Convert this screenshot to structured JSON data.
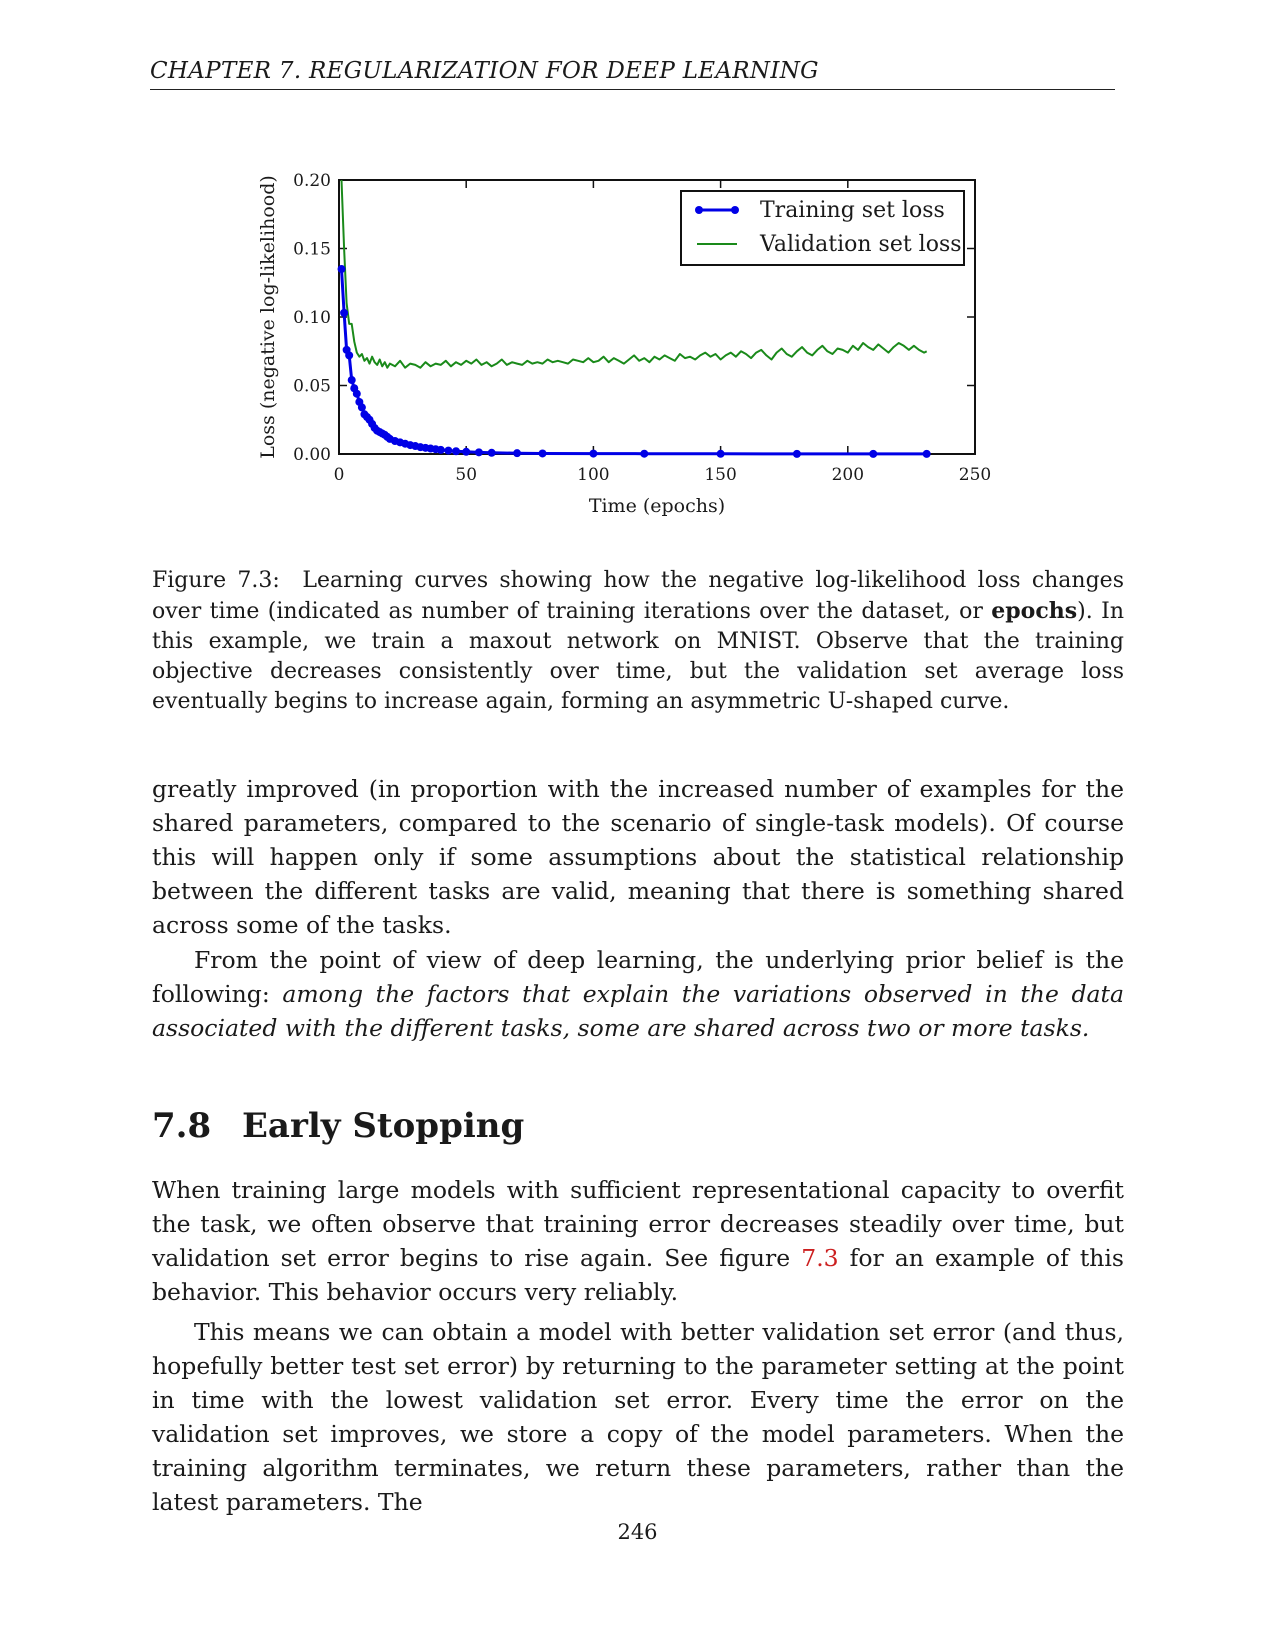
{
  "header": {
    "running_head": "CHAPTER 7.  REGULARIZATION FOR DEEP LEARNING"
  },
  "figure": {
    "caption_label": "Figure 7.3:",
    "caption_pre": "Learning curves showing how the negative log-likelihood loss changes over time (indicated as number of training iterations over the dataset, or",
    "caption_bold": "epochs",
    "caption_post": ").  In this example, we train a maxout network on MNIST. Observe that the training objective decreases consistently over time, but the validation set average loss eventually begins to increase again, forming an asymmetric U-shaped curve."
  },
  "chart_data": {
    "type": "line",
    "title": "",
    "xlabel": "Time (epochs)",
    "ylabel": "Loss (negative log-likelihood)",
    "xlim": [
      0,
      250
    ],
    "ylim": [
      0.0,
      0.2
    ],
    "xticks": [
      "0",
      "50",
      "100",
      "150",
      "200",
      "250"
    ],
    "yticks": [
      "0.00",
      "0.05",
      "0.10",
      "0.15",
      "0.20"
    ],
    "grid": false,
    "legend_position": "top-right",
    "series": [
      {
        "name": "Training set loss",
        "color": "#0000e6",
        "marker": "circle",
        "x": [
          1,
          2,
          3,
          4,
          5,
          6,
          7,
          8,
          9,
          10,
          11,
          12,
          13,
          14,
          15,
          16,
          17,
          18,
          19,
          20,
          22,
          24,
          26,
          28,
          30,
          32,
          34,
          36,
          38,
          40,
          43,
          46,
          50,
          55,
          60,
          70,
          80,
          100,
          120,
          150,
          180,
          210,
          231
        ],
        "y": [
          0.135,
          0.103,
          0.076,
          0.072,
          0.054,
          0.048,
          0.044,
          0.038,
          0.034,
          0.029,
          0.027,
          0.025,
          0.022,
          0.019,
          0.017,
          0.016,
          0.015,
          0.014,
          0.0125,
          0.011,
          0.0095,
          0.0085,
          0.0075,
          0.0065,
          0.0058,
          0.005,
          0.0045,
          0.004,
          0.0035,
          0.003,
          0.0025,
          0.002,
          0.0016,
          0.0012,
          0.0009,
          0.0006,
          0.0004,
          0.0003,
          0.0002,
          0.00015,
          0.0001,
          0.0001,
          0.0001
        ]
      },
      {
        "name": "Validation set loss",
        "color": "#1a8a1a",
        "marker": "none",
        "x": [
          1,
          2,
          3,
          4,
          5,
          6,
          7,
          8,
          9,
          10,
          11,
          12,
          13,
          14,
          15,
          16,
          17,
          18,
          19,
          20,
          22,
          24,
          26,
          28,
          30,
          32,
          34,
          36,
          38,
          40,
          42,
          44,
          46,
          48,
          50,
          52,
          54,
          56,
          58,
          60,
          62,
          64,
          66,
          68,
          70,
          72,
          74,
          76,
          78,
          80,
          82,
          84,
          86,
          88,
          90,
          92,
          94,
          96,
          98,
          100,
          102,
          104,
          106,
          108,
          110,
          112,
          114,
          116,
          118,
          120,
          122,
          124,
          126,
          128,
          130,
          132,
          134,
          136,
          138,
          140,
          142,
          144,
          146,
          148,
          150,
          152,
          154,
          156,
          158,
          160,
          162,
          164,
          166,
          168,
          170,
          172,
          174,
          176,
          178,
          180,
          182,
          184,
          186,
          188,
          190,
          192,
          194,
          196,
          198,
          200,
          202,
          204,
          206,
          208,
          210,
          212,
          214,
          216,
          218,
          220,
          222,
          224,
          226,
          228,
          230,
          231
        ],
        "y": [
          0.2,
          0.15,
          0.11,
          0.095,
          0.095,
          0.082,
          0.074,
          0.071,
          0.073,
          0.068,
          0.07,
          0.066,
          0.071,
          0.067,
          0.065,
          0.069,
          0.064,
          0.067,
          0.063,
          0.066,
          0.064,
          0.068,
          0.063,
          0.066,
          0.065,
          0.063,
          0.067,
          0.064,
          0.066,
          0.065,
          0.068,
          0.064,
          0.067,
          0.065,
          0.068,
          0.066,
          0.069,
          0.065,
          0.067,
          0.064,
          0.066,
          0.069,
          0.065,
          0.067,
          0.066,
          0.065,
          0.068,
          0.066,
          0.067,
          0.066,
          0.069,
          0.067,
          0.068,
          0.067,
          0.066,
          0.069,
          0.068,
          0.067,
          0.07,
          0.067,
          0.068,
          0.071,
          0.067,
          0.07,
          0.068,
          0.066,
          0.069,
          0.072,
          0.068,
          0.07,
          0.067,
          0.071,
          0.069,
          0.072,
          0.07,
          0.068,
          0.073,
          0.07,
          0.071,
          0.069,
          0.072,
          0.074,
          0.071,
          0.073,
          0.069,
          0.072,
          0.074,
          0.071,
          0.075,
          0.073,
          0.07,
          0.074,
          0.076,
          0.072,
          0.069,
          0.074,
          0.077,
          0.073,
          0.071,
          0.075,
          0.078,
          0.074,
          0.072,
          0.076,
          0.079,
          0.075,
          0.073,
          0.077,
          0.076,
          0.074,
          0.079,
          0.076,
          0.081,
          0.078,
          0.076,
          0.08,
          0.077,
          0.074,
          0.078,
          0.081,
          0.079,
          0.076,
          0.079,
          0.076,
          0.074,
          0.075
        ]
      }
    ]
  },
  "body": {
    "para1": "greatly improved (in proportion with the increased number of examples for the shared parameters, compared to the scenario of single-task models). Of course this will happen only if some assumptions about the statistical relationship between the different tasks are valid, meaning that there is something shared across some of the tasks.",
    "para2_pre": "From the point of view of deep learning, the underlying prior belief is the following:",
    "para2_italic": "among the factors that explain the variations observed in the data associated with the different tasks, some are shared across two or more tasks.",
    "section_number": "7.8",
    "section_title": "Early Stopping",
    "para3_pre": "When training large models with sufficient representational capacity to overfit the task, we often observe that training error decreases steadily over time, but validation set error begins to rise again.  See figure",
    "para3_ref": "7.3",
    "para3_post": "for an example of this behavior. This behavior occurs very reliably.",
    "para4": "This means we can obtain a model with better validation set error (and thus, hopefully better test set error) by returning to the parameter setting at the point in time with the lowest validation set error. Every time the error on the validation set improves, we store a copy of the model parameters. When the training algorithm terminates, we return these parameters, rather than the latest parameters. The"
  },
  "footer": {
    "page_number": "246"
  }
}
